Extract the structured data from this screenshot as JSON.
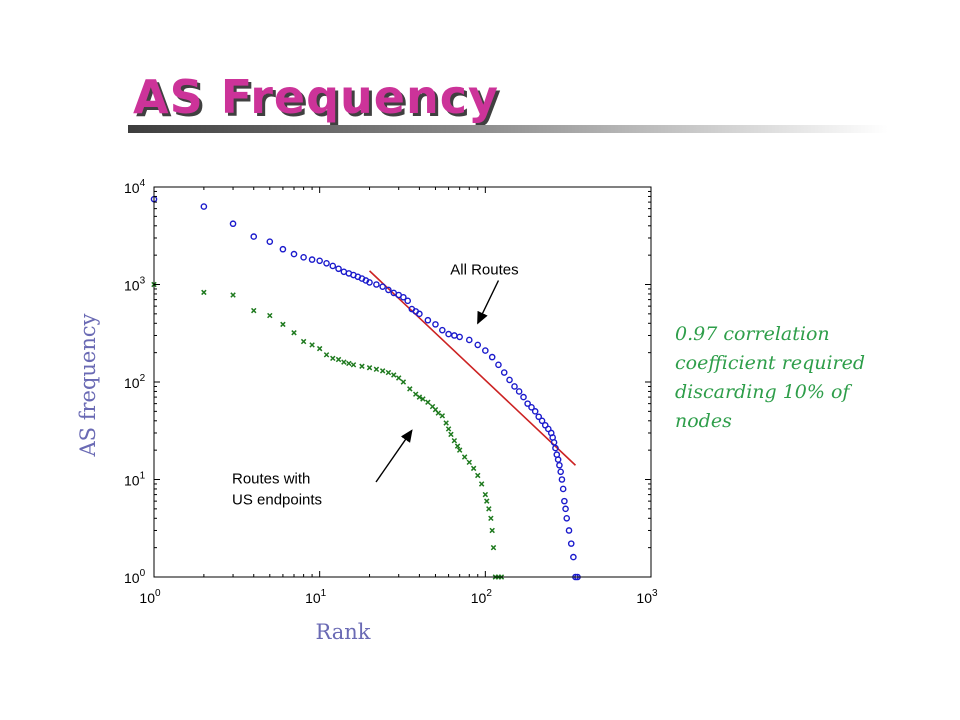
{
  "slide": {
    "title": "AS Frequency",
    "note": "0.97 correlation coefficient required discarding 10% of nodes"
  },
  "chart_data": {
    "type": "scatter",
    "title": "",
    "xlabel": "Rank",
    "ylabel": "AS frequency",
    "xscale": "log",
    "yscale": "log",
    "xlim": [
      1,
      1000
    ],
    "ylim": [
      1,
      10000
    ],
    "grid": false,
    "x_ticks": [
      {
        "value": 1,
        "base": "10",
        "exp": "0"
      },
      {
        "value": 10,
        "base": "10",
        "exp": "1"
      },
      {
        "value": 100,
        "base": "10",
        "exp": "2"
      },
      {
        "value": 1000,
        "base": "10",
        "exp": "3"
      }
    ],
    "y_ticks": [
      {
        "value": 1,
        "base": "10",
        "exp": "0"
      },
      {
        "value": 10,
        "base": "10",
        "exp": "1"
      },
      {
        "value": 100,
        "base": "10",
        "exp": "2"
      },
      {
        "value": 1000,
        "base": "10",
        "exp": "3"
      },
      {
        "value": 10000,
        "base": "10",
        "exp": "4"
      }
    ],
    "series": [
      {
        "name": "All Routes",
        "marker": "circle",
        "color": "#1a1acc",
        "points": [
          [
            1,
            7500
          ],
          [
            2,
            6300
          ],
          [
            3,
            4200
          ],
          [
            4,
            3100
          ],
          [
            5,
            2750
          ],
          [
            6,
            2300
          ],
          [
            7,
            2050
          ],
          [
            8,
            1900
          ],
          [
            9,
            1800
          ],
          [
            10,
            1750
          ],
          [
            11,
            1650
          ],
          [
            12,
            1550
          ],
          [
            13,
            1450
          ],
          [
            14,
            1350
          ],
          [
            15,
            1300
          ],
          [
            16,
            1250
          ],
          [
            17,
            1200
          ],
          [
            18,
            1150
          ],
          [
            19,
            1100
          ],
          [
            20,
            1050
          ],
          [
            22,
            1000
          ],
          [
            24,
            950
          ],
          [
            26,
            880
          ],
          [
            28,
            820
          ],
          [
            30,
            780
          ],
          [
            32,
            740
          ],
          [
            34,
            680
          ],
          [
            36,
            560
          ],
          [
            38,
            530
          ],
          [
            40,
            500
          ],
          [
            45,
            430
          ],
          [
            50,
            390
          ],
          [
            55,
            340
          ],
          [
            60,
            310
          ],
          [
            65,
            300
          ],
          [
            70,
            290
          ],
          [
            80,
            270
          ],
          [
            90,
            240
          ],
          [
            100,
            210
          ],
          [
            110,
            180
          ],
          [
            120,
            150
          ],
          [
            130,
            125
          ],
          [
            140,
            105
          ],
          [
            150,
            90
          ],
          [
            160,
            80
          ],
          [
            170,
            70
          ],
          [
            180,
            60
          ],
          [
            190,
            55
          ],
          [
            200,
            50
          ],
          [
            210,
            44
          ],
          [
            220,
            40
          ],
          [
            230,
            36
          ],
          [
            240,
            33
          ],
          [
            250,
            30
          ],
          [
            255,
            27
          ],
          [
            260,
            24
          ],
          [
            265,
            21
          ],
          [
            270,
            18
          ],
          [
            275,
            16
          ],
          [
            280,
            14
          ],
          [
            285,
            12
          ],
          [
            290,
            10
          ],
          [
            295,
            8
          ],
          [
            300,
            6
          ],
          [
            305,
            5
          ],
          [
            310,
            4
          ],
          [
            320,
            3
          ],
          [
            330,
            2.2
          ],
          [
            340,
            1.6
          ],
          [
            350,
            1
          ],
          [
            360,
            1
          ]
        ]
      },
      {
        "name": "Routes with US endpoints",
        "marker": "x",
        "color": "#1f7a1f",
        "points": [
          [
            1,
            1000
          ],
          [
            2,
            830
          ],
          [
            3,
            780
          ],
          [
            4,
            540
          ],
          [
            5,
            480
          ],
          [
            6,
            390
          ],
          [
            7,
            320
          ],
          [
            8,
            260
          ],
          [
            9,
            240
          ],
          [
            10,
            220
          ],
          [
            11,
            190
          ],
          [
            12,
            175
          ],
          [
            13,
            170
          ],
          [
            14,
            160
          ],
          [
            15,
            155
          ],
          [
            16,
            150
          ],
          [
            18,
            145
          ],
          [
            20,
            140
          ],
          [
            22,
            135
          ],
          [
            24,
            130
          ],
          [
            26,
            125
          ],
          [
            28,
            118
          ],
          [
            30,
            110
          ],
          [
            32,
            100
          ],
          [
            35,
            85
          ],
          [
            38,
            75
          ],
          [
            40,
            70
          ],
          [
            42,
            67
          ],
          [
            45,
            62
          ],
          [
            48,
            56
          ],
          [
            50,
            52
          ],
          [
            52,
            48
          ],
          [
            55,
            45
          ],
          [
            58,
            38
          ],
          [
            60,
            33
          ],
          [
            62,
            29
          ],
          [
            65,
            25
          ],
          [
            68,
            22
          ],
          [
            70,
            20
          ],
          [
            75,
            17
          ],
          [
            80,
            15
          ],
          [
            85,
            13
          ],
          [
            90,
            11
          ],
          [
            95,
            9
          ],
          [
            100,
            7
          ],
          [
            102,
            6
          ],
          [
            105,
            5
          ],
          [
            108,
            4
          ],
          [
            110,
            3
          ],
          [
            112,
            2
          ],
          [
            115,
            1
          ],
          [
            120,
            1
          ],
          [
            125,
            1
          ]
        ]
      }
    ],
    "fit_line": {
      "x": [
        20,
        350
      ],
      "y": [
        1380,
        14
      ],
      "color": "#cc2222"
    },
    "annotations": [
      {
        "text": "All Routes",
        "arrow_from": [
          120,
          1000
        ],
        "arrow_to": [
          90,
          400
        ]
      },
      {
        "lines": [
          "Routes with",
          "US endpoints"
        ],
        "arrow_from": [
          15,
          10
        ],
        "arrow_to": [
          36,
          35
        ]
      }
    ]
  }
}
